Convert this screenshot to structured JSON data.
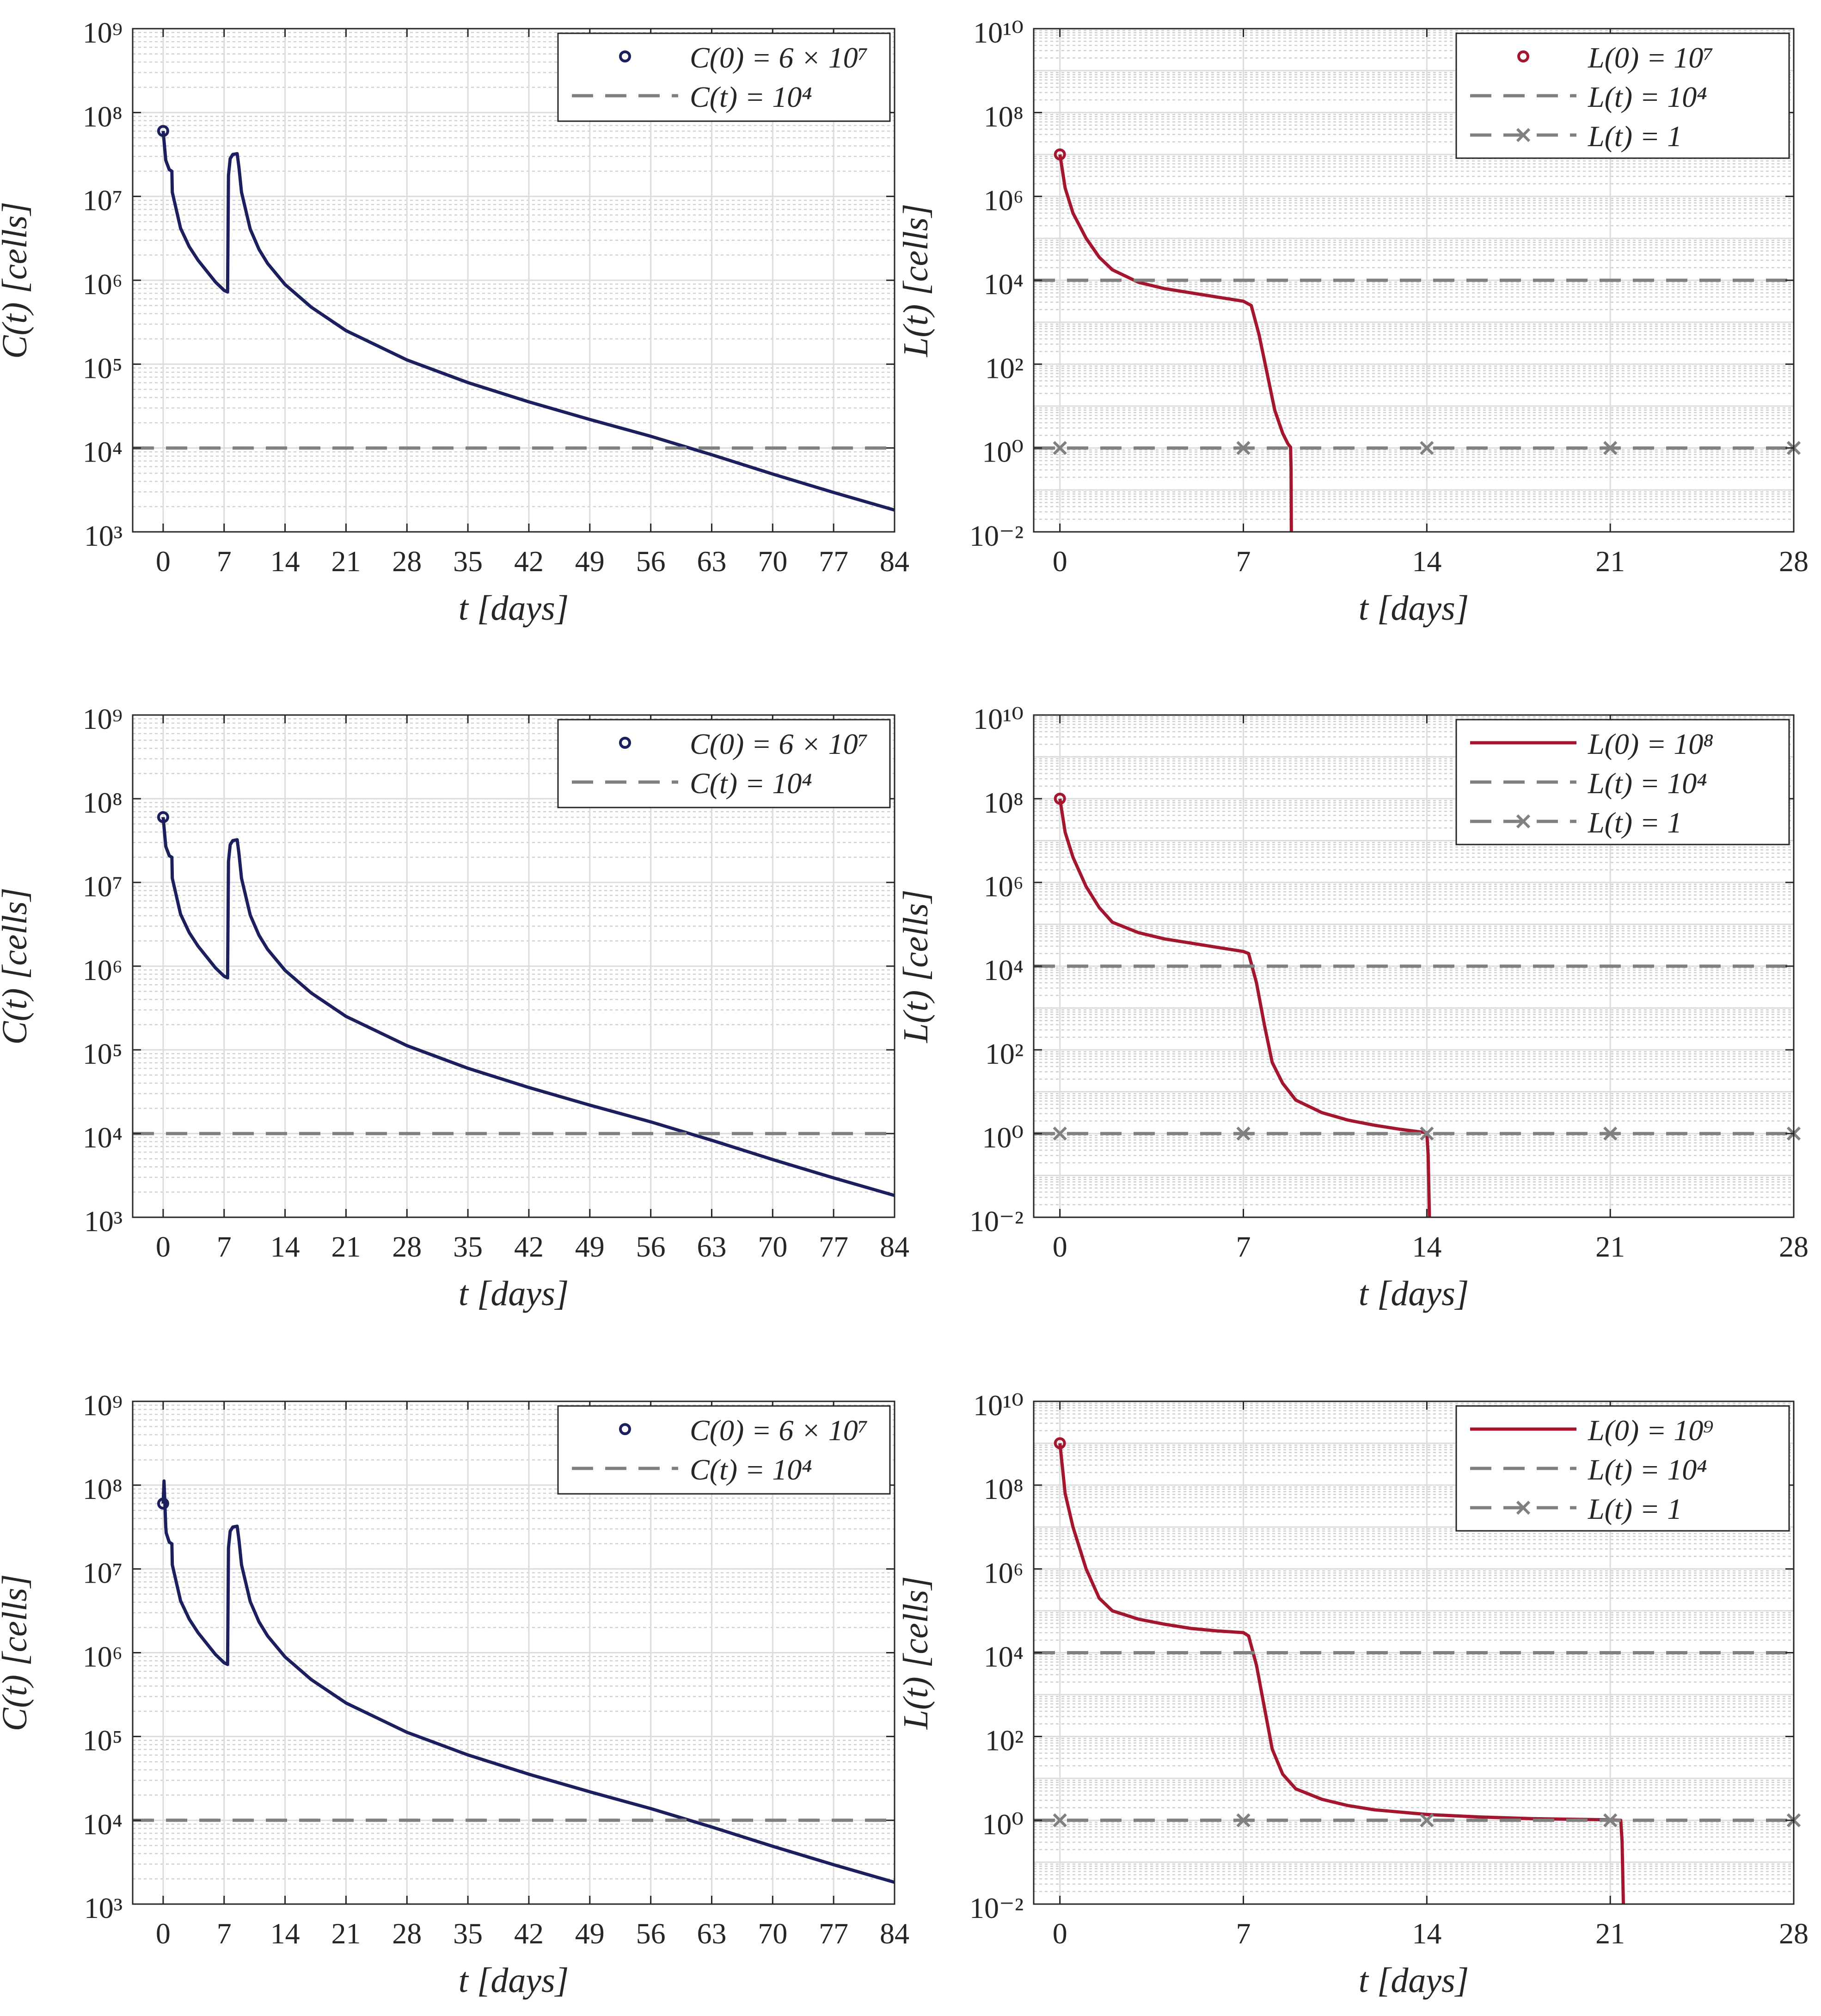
{
  "chart_data": [
    {
      "id": "C1",
      "type": "line",
      "scale_y": "log",
      "xlabel": "t [days]",
      "ylabel": "C(t) [cells]",
      "xlim": [
        -3.5,
        84
      ],
      "ylim_exp": [
        3,
        9
      ],
      "xticks": [
        0,
        7,
        14,
        21,
        28,
        35,
        42,
        49,
        56,
        63,
        70,
        77,
        84
      ],
      "ytick_exps": [
        3,
        4,
        5,
        6,
        7,
        8,
        9
      ],
      "legend": [
        {
          "label": "C(0) = 6 × 10⁷",
          "style": "marker-circle",
          "color": "#1b1f5e"
        },
        {
          "label": "C(t) = 10⁴",
          "style": "dashed",
          "color": "#808080"
        }
      ],
      "series": [
        {
          "name": "C(t)",
          "color": "#1b1f5e",
          "x": [
            0,
            0.3,
            0.7,
            1,
            1.05,
            2,
            3,
            4,
            5,
            6,
            7,
            7.4,
            7.5,
            7.7,
            8,
            8.5,
            8.7,
            9,
            10,
            11,
            12,
            14,
            17,
            21,
            28,
            35,
            42,
            49,
            56,
            63,
            70,
            77,
            84
          ],
          "logy": [
            7.78,
            7.43,
            7.32,
            7.3,
            7.05,
            6.62,
            6.4,
            6.24,
            6.11,
            5.98,
            5.88,
            5.86,
            7.25,
            7.45,
            7.5,
            7.51,
            7.35,
            7.05,
            6.61,
            6.37,
            6.2,
            5.95,
            5.68,
            5.4,
            5.05,
            4.78,
            4.55,
            4.34,
            4.14,
            3.92,
            3.69,
            3.47,
            3.26
          ]
        },
        {
          "name": "C(t) = 10⁴",
          "color": "#808080",
          "dash": true,
          "x": [
            -3.5,
            84
          ],
          "logy": [
            4,
            4
          ]
        }
      ],
      "markers": [
        {
          "x": 0,
          "logy": 7.78,
          "color": "#1b1f5e"
        }
      ]
    },
    {
      "id": "L1",
      "type": "line",
      "scale_y": "log",
      "xlabel": "t [days]",
      "ylabel": "L(t) [cells]",
      "xlim": [
        -1,
        28
      ],
      "ylim_exp": [
        -2,
        10
      ],
      "xticks": [
        0,
        7,
        14,
        21,
        28
      ],
      "ytick_exps": [
        -2,
        0,
        2,
        4,
        6,
        8,
        10
      ],
      "legend": [
        {
          "label": "L(0) = 10⁷",
          "style": "marker-circle",
          "color": "#a3162e"
        },
        {
          "label": "L(t) = 10⁴",
          "style": "dashed",
          "color": "#808080"
        },
        {
          "label": "L(t) = 1",
          "style": "dashed-x",
          "color": "#808080"
        }
      ],
      "series": [
        {
          "name": "L(t)",
          "color": "#a3162e",
          "x": [
            0,
            0.2,
            0.5,
            1,
            1.5,
            2,
            3,
            4,
            5,
            6,
            7,
            7.3,
            7.6,
            7.9,
            8.2,
            8.5,
            8.7,
            8.8,
            8.82,
            8.83
          ],
          "logy": [
            7.0,
            6.2,
            5.6,
            5.0,
            4.55,
            4.25,
            3.95,
            3.8,
            3.7,
            3.6,
            3.5,
            3.4,
            2.7,
            1.8,
            0.9,
            0.35,
            0.1,
            0.02,
            -0.5,
            -2.0
          ]
        },
        {
          "name": "L(t) = 10⁴",
          "color": "#808080",
          "dash": true,
          "x": [
            -1,
            28
          ],
          "logy": [
            4,
            4
          ]
        },
        {
          "name": "L(t) = 1",
          "color": "#808080",
          "dash": true,
          "x": [
            -1,
            28
          ],
          "logy": [
            0,
            0
          ],
          "xmarks": [
            0,
            7,
            14,
            21,
            28
          ]
        }
      ],
      "markers": [
        {
          "x": 0,
          "logy": 7.0,
          "color": "#a3162e"
        }
      ]
    },
    {
      "id": "C2",
      "type": "line",
      "scale_y": "log",
      "xlabel": "t [days]",
      "ylabel": "C(t) [cells]",
      "xlim": [
        -3.5,
        84
      ],
      "ylim_exp": [
        3,
        9
      ],
      "xticks": [
        0,
        7,
        14,
        21,
        28,
        35,
        42,
        49,
        56,
        63,
        70,
        77,
        84
      ],
      "ytick_exps": [
        3,
        4,
        5,
        6,
        7,
        8,
        9
      ],
      "legend": [
        {
          "label": "C(0) = 6 × 10⁷",
          "style": "marker-circle",
          "color": "#1b1f5e"
        },
        {
          "label": "C(t) = 10⁴",
          "style": "dashed",
          "color": "#808080"
        }
      ],
      "series": [
        {
          "name": "C(t)",
          "color": "#1b1f5e",
          "x": [
            0,
            0.3,
            0.7,
            1,
            1.05,
            2,
            3,
            4,
            5,
            6,
            7,
            7.4,
            7.5,
            7.7,
            8,
            8.5,
            8.7,
            9,
            10,
            11,
            12,
            14,
            17,
            21,
            28,
            35,
            42,
            49,
            56,
            63,
            70,
            77,
            84
          ],
          "logy": [
            7.78,
            7.43,
            7.32,
            7.3,
            7.05,
            6.62,
            6.4,
            6.24,
            6.11,
            5.98,
            5.88,
            5.86,
            7.25,
            7.45,
            7.5,
            7.51,
            7.35,
            7.05,
            6.61,
            6.37,
            6.2,
            5.95,
            5.68,
            5.4,
            5.05,
            4.78,
            4.55,
            4.34,
            4.14,
            3.92,
            3.69,
            3.47,
            3.26
          ]
        },
        {
          "name": "C(t) = 10⁴",
          "color": "#808080",
          "dash": true,
          "x": [
            -3.5,
            84
          ],
          "logy": [
            4,
            4
          ]
        }
      ],
      "markers": [
        {
          "x": 0,
          "logy": 7.78,
          "color": "#1b1f5e"
        }
      ]
    },
    {
      "id": "L2",
      "type": "line",
      "scale_y": "log",
      "xlabel": "t [days]",
      "ylabel": "L(t) [cells]",
      "xlim": [
        -1,
        28
      ],
      "ylim_exp": [
        -2,
        10
      ],
      "xticks": [
        0,
        7,
        14,
        21,
        28
      ],
      "ytick_exps": [
        -2,
        0,
        2,
        4,
        6,
        8,
        10
      ],
      "legend": [
        {
          "label": "L(0) = 10⁸",
          "style": "line",
          "color": "#a3162e"
        },
        {
          "label": "L(t) = 10⁴",
          "style": "dashed",
          "color": "#808080"
        },
        {
          "label": "L(t) = 1",
          "style": "dashed-x",
          "color": "#808080"
        }
      ],
      "series": [
        {
          "name": "L(t)",
          "color": "#a3162e",
          "x": [
            0,
            0.2,
            0.5,
            1,
            1.5,
            2,
            3,
            4,
            5,
            6,
            7,
            7.2,
            7.5,
            7.8,
            8.1,
            8.5,
            9,
            10,
            11,
            12,
            13,
            14,
            14.05,
            14.1
          ],
          "logy": [
            8.0,
            7.2,
            6.6,
            5.9,
            5.4,
            5.05,
            4.8,
            4.65,
            4.55,
            4.45,
            4.35,
            4.3,
            3.6,
            2.6,
            1.7,
            1.2,
            0.8,
            0.5,
            0.32,
            0.2,
            0.1,
            0.02,
            -0.5,
            -2.0
          ]
        },
        {
          "name": "L(t) = 10⁴",
          "color": "#808080",
          "dash": true,
          "x": [
            -1,
            28
          ],
          "logy": [
            4,
            4
          ]
        },
        {
          "name": "L(t) = 1",
          "color": "#808080",
          "dash": true,
          "x": [
            -1,
            28
          ],
          "logy": [
            0,
            0
          ],
          "xmarks": [
            0,
            7,
            14,
            21,
            28
          ]
        }
      ],
      "markers": [
        {
          "x": 0,
          "logy": 8.0,
          "color": "#a3162e"
        }
      ]
    },
    {
      "id": "C3",
      "type": "line",
      "scale_y": "log",
      "xlabel": "t [days]",
      "ylabel": "C(t) [cells]",
      "xlim": [
        -3.5,
        84
      ],
      "ylim_exp": [
        3,
        9
      ],
      "xticks": [
        0,
        7,
        14,
        21,
        28,
        35,
        42,
        49,
        56,
        63,
        70,
        77,
        84
      ],
      "ytick_exps": [
        3,
        4,
        5,
        6,
        7,
        8,
        9
      ],
      "legend": [
        {
          "label": "C(0) = 6 × 10⁷",
          "style": "marker-circle",
          "color": "#1b1f5e"
        },
        {
          "label": "C(t) = 10⁴",
          "style": "dashed",
          "color": "#808080"
        }
      ],
      "series": [
        {
          "name": "C(t)",
          "color": "#1b1f5e",
          "x": [
            0,
            0.1,
            0.3,
            0.35,
            0.7,
            1,
            1.05,
            2,
            3,
            4,
            5,
            6,
            7,
            7.4,
            7.5,
            7.7,
            8,
            8.5,
            8.7,
            9,
            10,
            11,
            12,
            14,
            17,
            21,
            28,
            35,
            42,
            49,
            56,
            63,
            70,
            77,
            84
          ],
          "logy": [
            7.78,
            8.05,
            7.5,
            7.43,
            7.32,
            7.3,
            7.05,
            6.62,
            6.4,
            6.24,
            6.11,
            5.98,
            5.88,
            5.86,
            7.25,
            7.45,
            7.5,
            7.51,
            7.35,
            7.05,
            6.61,
            6.37,
            6.2,
            5.95,
            5.68,
            5.4,
            5.05,
            4.78,
            4.55,
            4.34,
            4.14,
            3.92,
            3.69,
            3.47,
            3.26
          ]
        },
        {
          "name": "C(t) = 10⁴",
          "color": "#808080",
          "dash": true,
          "x": [
            -3.5,
            84
          ],
          "logy": [
            4,
            4
          ]
        }
      ],
      "markers": [
        {
          "x": 0,
          "logy": 7.78,
          "color": "#1b1f5e"
        }
      ]
    },
    {
      "id": "L3",
      "type": "line",
      "scale_y": "log",
      "xlabel": "t [days]",
      "ylabel": "L(t) [cells]",
      "xlim": [
        -1,
        28
      ],
      "ylim_exp": [
        -2,
        10
      ],
      "xticks": [
        0,
        7,
        14,
        21,
        28
      ],
      "ytick_exps": [
        -2,
        0,
        2,
        4,
        6,
        8,
        10
      ],
      "legend": [
        {
          "label": "L(0) = 10⁹",
          "style": "line",
          "color": "#a3162e"
        },
        {
          "label": "L(t) = 10⁴",
          "style": "dashed",
          "color": "#808080"
        },
        {
          "label": "L(t) = 1",
          "style": "dashed-x",
          "color": "#808080"
        }
      ],
      "series": [
        {
          "name": "L(t)",
          "color": "#a3162e",
          "x": [
            0,
            0.2,
            0.5,
            1,
            1.5,
            2,
            3,
            4,
            5,
            6,
            7,
            7.2,
            7.5,
            7.8,
            8.1,
            8.5,
            9,
            10,
            11,
            12,
            14,
            16,
            18,
            20,
            21,
            21.4,
            21.45,
            21.5
          ],
          "logy": [
            9.0,
            7.8,
            7.0,
            6.0,
            5.3,
            5.0,
            4.8,
            4.68,
            4.58,
            4.52,
            4.48,
            4.4,
            3.7,
            2.7,
            1.7,
            1.1,
            0.75,
            0.5,
            0.35,
            0.25,
            0.14,
            0.08,
            0.04,
            0.02,
            0.01,
            0.0,
            -0.5,
            -2.0
          ]
        },
        {
          "name": "L(t) = 10⁴",
          "color": "#808080",
          "dash": true,
          "x": [
            -1,
            28
          ],
          "logy": [
            4,
            4
          ]
        },
        {
          "name": "L(t) = 1",
          "color": "#808080",
          "dash": true,
          "x": [
            -1,
            28
          ],
          "logy": [
            0,
            0
          ],
          "xmarks": [
            0,
            7,
            14,
            21,
            28
          ]
        }
      ],
      "markers": [
        {
          "x": 0,
          "logy": 9.0,
          "color": "#a3162e"
        }
      ]
    }
  ]
}
